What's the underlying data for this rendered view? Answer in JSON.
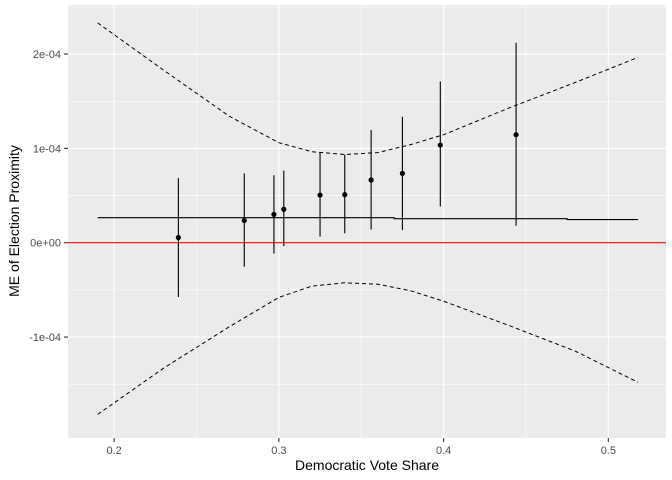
{
  "chart_data": {
    "type": "scatter",
    "xlabel": "Democratic Vote Share",
    "ylabel": "ME of Election Proximity",
    "xlim": [
      0.172,
      0.535
    ],
    "ylim": [
      -0.000207,
      0.000252
    ],
    "x_ticks": [
      0.2,
      0.3,
      0.4,
      0.5
    ],
    "x_tick_labels": [
      "0.2",
      "0.3",
      "0.4",
      "0.5"
    ],
    "y_ticks": [
      -0.0001,
      0.0,
      0.0001,
      0.0002
    ],
    "y_tick_labels": [
      "-1e-04",
      "0e+00",
      "1e-04",
      "2e-04"
    ],
    "grid": true,
    "background": "#ebebeb",
    "gridline_color": "#ffffff",
    "points": {
      "color": "#000000",
      "x": [
        0.239,
        0.279,
        0.297,
        0.303,
        0.325,
        0.34,
        0.356,
        0.375,
        0.398,
        0.444
      ],
      "y": [
        5.5e-06,
        2.35e-05,
        3e-05,
        3.55e-05,
        5.05e-05,
        5.1e-05,
        6.65e-05,
        7.35e-05,
        0.0001035,
        0.0001145
      ],
      "ymin": [
        -5.75e-05,
        -2.55e-05,
        -1.15e-05,
        -3.5e-06,
        6.5e-06,
        1e-05,
        1.4e-05,
        1.35e-05,
        3.85e-05,
        1.8e-05
      ],
      "ymax": [
        6.85e-05,
        7.35e-05,
        7.15e-05,
        7.65e-05,
        9.6e-05,
        9.35e-05,
        0.0001195,
        0.0001335,
        0.000171,
        0.000212
      ]
    },
    "mean_line": {
      "color": "#000000",
      "x": [
        0.19,
        0.37,
        0.37,
        0.475,
        0.475,
        0.518
      ],
      "y": [
        2.65e-05,
        2.65e-05,
        2.55e-05,
        2.55e-05,
        2.45e-05,
        2.45e-05
      ]
    },
    "upper_band": {
      "color": "#000000",
      "dash": true,
      "x": [
        0.19,
        0.23,
        0.27,
        0.3,
        0.32,
        0.34,
        0.36,
        0.38,
        0.4,
        0.44,
        0.48,
        0.518
      ],
      "y": [
        0.000233,
        0.000183,
        0.000134,
        0.000106,
        9.65e-05,
        9.35e-05,
        9.55e-05,
        0.000104,
        0.0001145,
        0.000143,
        0.00017,
        0.0001965
      ]
    },
    "lower_band": {
      "color": "#000000",
      "dash": true,
      "x": [
        0.19,
        0.23,
        0.27,
        0.3,
        0.32,
        0.34,
        0.36,
        0.38,
        0.4,
        0.44,
        0.48,
        0.518
      ],
      "y": [
        -0.000182,
        -0.000133,
        -8.9e-05,
        -5.8e-05,
        -4.6e-05,
        -4.25e-05,
        -4.4e-05,
        -5.1e-05,
        -6.2e-05,
        -8.8e-05,
        -0.000115,
        -0.000148
      ]
    },
    "hline": {
      "y": 0,
      "color": "#ff0000"
    }
  }
}
